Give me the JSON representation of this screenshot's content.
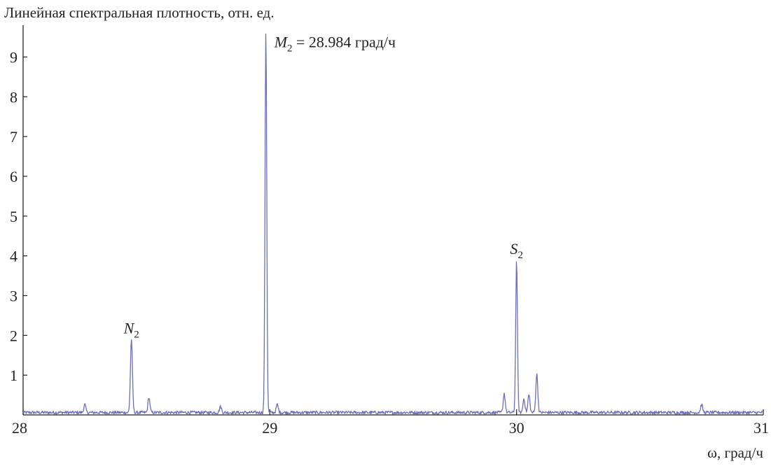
{
  "chart_data": {
    "type": "line",
    "ylabel": "Линейная спектральная плотность, отн. ед.",
    "xlabel": "ω, град/ч",
    "xlim": [
      28,
      31
    ],
    "ylim": [
      0,
      9.8
    ],
    "xticks": [
      28,
      29,
      30,
      31
    ],
    "yticks": [
      1,
      2,
      3,
      4,
      5,
      6,
      7,
      8,
      9
    ],
    "grid": false,
    "line_color": "#6b6fbb",
    "axis_color": "#231f20",
    "baseline": 0.06,
    "noise_amplitude": 0.08,
    "series": [
      {
        "peaks": [
          {
            "x": 28.25,
            "y": 0.2
          },
          {
            "x": 28.439,
            "y": 1.85
          },
          {
            "x": 28.51,
            "y": 0.38
          },
          {
            "x": 28.8,
            "y": 0.15
          },
          {
            "x": 28.984,
            "y": 9.6
          },
          {
            "x": 29.03,
            "y": 0.2
          },
          {
            "x": 29.95,
            "y": 0.48
          },
          {
            "x": 30.0,
            "y": 3.85
          },
          {
            "x": 30.03,
            "y": 0.35
          },
          {
            "x": 30.05,
            "y": 0.45
          },
          {
            "x": 30.082,
            "y": 0.97
          },
          {
            "x": 30.75,
            "y": 0.2
          }
        ]
      }
    ],
    "annotations": [
      {
        "symbol": "N",
        "sub": "2",
        "rest": "",
        "x": 28.439,
        "y": 2.05
      },
      {
        "symbol": "M",
        "sub": "2",
        "rest": " = 28.984 град/ч",
        "x": 28.984,
        "y": 9.25
      },
      {
        "symbol": "S",
        "sub": "2",
        "rest": "",
        "x": 30.0,
        "y": 4.05
      }
    ]
  }
}
